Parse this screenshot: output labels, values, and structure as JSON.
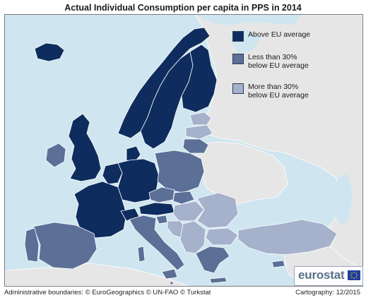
{
  "title": "Actual Individual Consumption per capita in PPS in 2014",
  "legend": [
    {
      "label": "Above EU average",
      "color": "#0e2d5e"
    },
    {
      "label": "Less than 30%\nbelow EU average",
      "color": "#5b6f97"
    },
    {
      "label": "More than 30%\nbelow EU average",
      "color": "#a6b1cc"
    }
  ],
  "colors": {
    "sea": "#cfe6f0",
    "non_eu_land": "#e6e6e6",
    "border": "#ffffff",
    "hatch": "#8fa0bf"
  },
  "logo": {
    "text": "eurostat"
  },
  "footer": {
    "source": "Administrative boundaries: © EuroGeographics © UN-FAO © Turkstat",
    "cartography": "Cartography: 12/2015"
  }
}
